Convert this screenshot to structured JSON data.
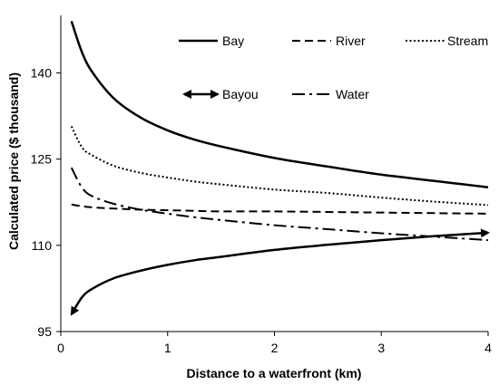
{
  "chart_data": {
    "type": "line",
    "title": "",
    "xlabel": "Distance to a waterfront (km)",
    "ylabel": "Calculated price ($ thousand)",
    "xlim": [
      0,
      4
    ],
    "ylim": [
      95,
      150
    ],
    "x_ticks": [
      "0",
      "1",
      "2",
      "3",
      "4"
    ],
    "y_ticks": [
      "95",
      "110",
      "125",
      "140"
    ],
    "x_tick_values": [
      0,
      1,
      2,
      3,
      4
    ],
    "y_tick_values": [
      95,
      110,
      125,
      140
    ],
    "grid": false,
    "legend_position": "top-right",
    "x": [
      0.1,
      0.2,
      0.3,
      0.5,
      0.75,
      1.0,
      1.25,
      1.5,
      2.0,
      2.5,
      3.0,
      3.5,
      4.0
    ],
    "series": [
      {
        "name": "Bay",
        "style": "solid",
        "values": [
          149.0,
          143.5,
          140.0,
          135.5,
          132.2,
          130.0,
          128.4,
          127.2,
          125.2,
          123.7,
          122.3,
          121.2,
          120.1
        ]
      },
      {
        "name": "River",
        "style": "dashed",
        "values": [
          117.1,
          116.8,
          116.6,
          116.4,
          116.2,
          116.1,
          116.0,
          115.9,
          115.9,
          115.8,
          115.7,
          115.6,
          115.5
        ]
      },
      {
        "name": "Stream",
        "style": "dotted",
        "values": [
          130.7,
          127.0,
          125.6,
          123.8,
          122.6,
          121.8,
          121.1,
          120.6,
          119.7,
          119.1,
          118.3,
          117.6,
          117.0
        ]
      },
      {
        "name": "Bayou",
        "style": "arrow",
        "values": [
          98.0,
          101.0,
          102.5,
          104.3,
          105.6,
          106.6,
          107.4,
          108.0,
          109.2,
          110.1,
          110.9,
          111.6,
          112.2
        ]
      },
      {
        "name": "Water",
        "style": "dashdot",
        "values": [
          123.5,
          120.0,
          118.5,
          117.2,
          116.2,
          115.5,
          114.9,
          114.4,
          113.5,
          112.8,
          112.1,
          111.5,
          110.9
        ]
      }
    ]
  }
}
